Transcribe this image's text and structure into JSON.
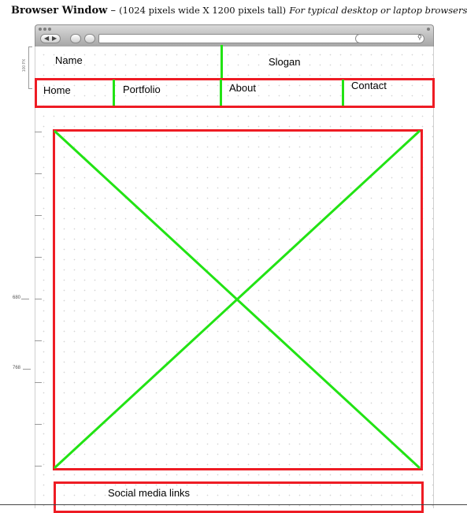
{
  "header": {
    "title_bold": "Browser Window",
    "title_dash": " – ",
    "title_dimensions": "(1024 pixels wide X 1200 pixels tall)",
    "title_note": "For typical desktop or laptop browsers"
  },
  "annotations": {
    "header_height": "100 PX",
    "ruler_label_1": "680",
    "ruler_label_2": "768"
  },
  "wireframe": {
    "name": "Name",
    "slogan": "Slogan",
    "nav": {
      "home": "Home",
      "portfolio": "Portfolio",
      "about": "About",
      "contact": "Contact"
    },
    "footer": {
      "social": "Social media links"
    }
  },
  "colors": {
    "frame": "#ee1c24",
    "divider": "#22e314",
    "cross": "#22e314"
  }
}
